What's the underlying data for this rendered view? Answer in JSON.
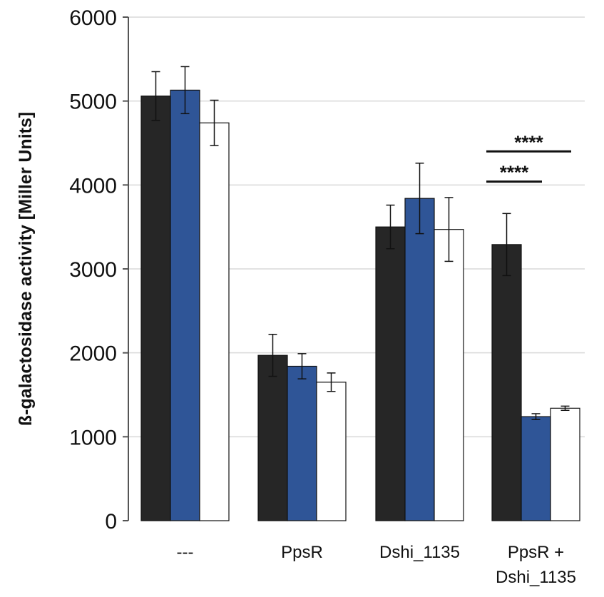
{
  "chart_data": {
    "type": "bar",
    "ylabel": "ß-galactosidase activity [Miller Units]",
    "ylim": [
      0,
      6000
    ],
    "yticks": [
      0,
      1000,
      2000,
      3000,
      4000,
      5000,
      6000
    ],
    "grid": true,
    "categories": [
      [
        "---"
      ],
      [
        "PpsR"
      ],
      [
        "Dshi_1135"
      ],
      [
        "PpsR +",
        "Dshi_1135"
      ]
    ],
    "series": [
      {
        "color": "#262626",
        "values": [
          5060,
          1970,
          3500,
          3290
        ],
        "errors": [
          290,
          250,
          260,
          370
        ]
      },
      {
        "color": "#2f5597",
        "values": [
          5130,
          1840,
          3840,
          1240
        ],
        "errors": [
          280,
          150,
          420,
          35
        ]
      },
      {
        "color": "#ffffff",
        "values": [
          4740,
          1650,
          3470,
          1340
        ],
        "errors": [
          270,
          110,
          380,
          25
        ]
      }
    ],
    "significance": [
      {
        "label": "****",
        "category": 3,
        "from_series": 0,
        "to_series": 2,
        "y": 4400
      },
      {
        "label": "****",
        "category": 3,
        "from_series": 0,
        "to_series": 1,
        "y": 4040
      }
    ]
  }
}
